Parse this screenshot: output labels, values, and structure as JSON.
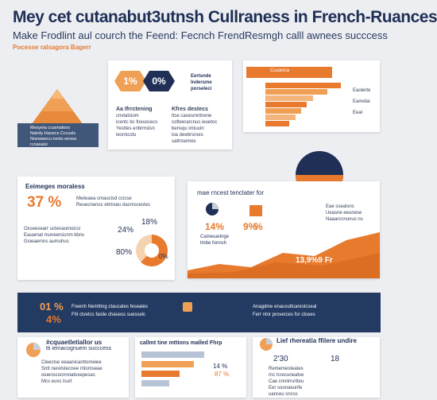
{
  "header": {
    "title": "Mey cet cutanabut3utnsh Cullraness in French-Ruances",
    "subtitle": "Make Frodlint aul courch the Feend: Fecnch FrendResmgh calll awnees succcess",
    "tag": "Pocesse ralsagora Bagerr"
  },
  "pyramid": {
    "lines": [
      "Mesyeta ccasnatiors",
      "Natrdy Hanecs Cccusls",
      "Nnewwecu nexts eevea rcoasaisi"
    ]
  },
  "card1": {
    "hex1": "1%",
    "hex2": "0%",
    "side_lines": [
      "Eertsnde",
      "Indersme",
      "porseleci"
    ],
    "col1_title": "Aa Ifrrctening",
    "col1_lines": [
      "cnvtatsiom",
      "icentc bc fneuscecs",
      "Yesttes enbrmslsn",
      "tesmicstu"
    ],
    "col2_title": "Kfres destecs",
    "col2_lines": [
      "ttse casesmntnene",
      "cofteerarcnus ieuetoc",
      "bensqu imtuuin",
      "loa deebrsroes",
      "sattnsemes"
    ]
  },
  "card2": {
    "head": "Cuuanca",
    "labels": [
      "Eaolerte",
      "Eamelai",
      "Eeal"
    ],
    "values": [
      0.95,
      0.78,
      0.6,
      0.52,
      0.45,
      0.38,
      0.3
    ]
  },
  "card3": {
    "title": "Eeimeges moraless",
    "big": "37 %",
    "pct_a": "18%",
    "pct_b": "24%",
    "pct_c": "80%",
    "pct_d": "0%",
    "pie_fraction": 0.62,
    "lines": [
      "Mwteaea cmaucisd ccicse",
      "Reuecnenoc etimseu dacmscestes",
      "Oxseesearr ucteoaomoicsi",
      "Eauamat muneersicnm kbns",
      "Gsieaemns aumuhus"
    ]
  },
  "card4": {
    "title": "mae rncest tenclater for",
    "pct1": "14%",
    "pct2": "9%",
    "pct_label": "%",
    "cap1": "Cameuaringe",
    "cap2": "tmbe fonnsh",
    "mini_legend": [
      "Eae ssealsns",
      "Ueasne eeunese",
      "Naaarccnunus ns"
    ],
    "area_value": "13,9%9 Fr"
  },
  "top_pie": {
    "fraction": 0.25
  },
  "banner": {
    "pct_a": "01 %",
    "pct_b": "4%",
    "text1_a": "Freenh Nemtting ctaucates feseales",
    "text1_b": "Fhl ctvetcs faslie chasess suesselc",
    "text2_a": "Anagdine enausuttcarestcseal",
    "text2_b": "Ferr ntnr proverces for ctcees"
  },
  "bottom_left": {
    "title": "#cquaetletiallor us",
    "subtitle": "tti iemacognuem succcess",
    "lines": [
      "Cleectse eeaanicanttomeiee",
      "Sntt neretstecnee rnlomseae",
      "oiuenscocnnnatoxepesas",
      "Mcs euxs tsurt"
    ]
  },
  "bottom_mid": {
    "title": "callmt tine mttions malled Fhrp",
    "bar_values": [
      0.9,
      0.75,
      0.55,
      0.4
    ],
    "pct_a": "14 %",
    "pct_b": "87 %"
  },
  "bottom_right": {
    "title": "Lief rhereatia ffilere undire",
    "pct": "2'30",
    "pct_b": "18",
    "lines": [
      "Rememesteates",
      "rnc tcrecuneatve",
      "Cae cnniirrurtteu",
      "Eer soonaeunfe",
      "uanceu sncss"
    ]
  }
}
